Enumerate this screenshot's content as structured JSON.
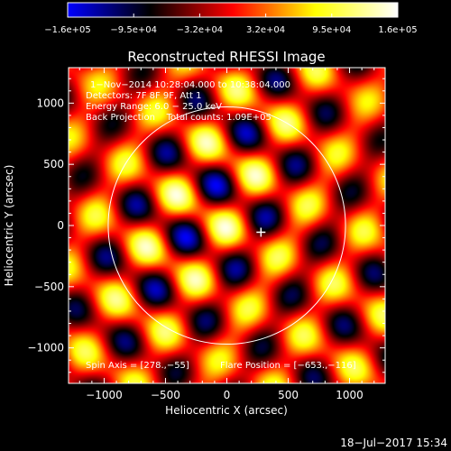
{
  "chart_data": {
    "type": "heatmap",
    "title": "Reconstructed RHESSI Image",
    "xlabel": "Heliocentric X (arcsec)",
    "ylabel": "Heliocentric Y (arcsec)",
    "xlim": [
      -1290,
      1290
    ],
    "ylim": [
      -1290,
      1290
    ],
    "xticks": [
      -1000,
      -500,
      0,
      500,
      1000
    ],
    "xtick_labels": [
      "−1000",
      "−500",
      "0",
      "500",
      "1000"
    ],
    "yticks": [
      -1000,
      -500,
      0,
      500,
      1000
    ],
    "ytick_labels": [
      "−1000",
      "−500",
      "0",
      "500",
      "1000"
    ],
    "colorbar": {
      "min": -160000,
      "max": 160000,
      "tick_labels": [
        "−1.6e+05",
        "−9.5e+04",
        "−3.2e+04",
        "3.2e+04",
        "9.5e+04",
        "1.6e+05"
      ],
      "colors": [
        "#0000ff",
        "#000000",
        "#ff0000",
        "#ffff00",
        "#ffffff"
      ]
    },
    "annotations": [
      "1−Nov−2014 10:28:04.000 to 10:38:04.000",
      "Detectors: 7F 8F 9F, Att 1",
      "Energy Range: 6.0 − 25.0 keV",
      "Back Projection    Total counts: 1.09E+05"
    ],
    "spin_axis_label": "Spin Axis = [278.,−55]",
    "flare_position_label": "Flare Position = [−653.,−116]",
    "solar_disk_radius": 967,
    "marker_position": [
      278,
      -55
    ],
    "timestamp": "18−Jul−2017 15:34"
  }
}
